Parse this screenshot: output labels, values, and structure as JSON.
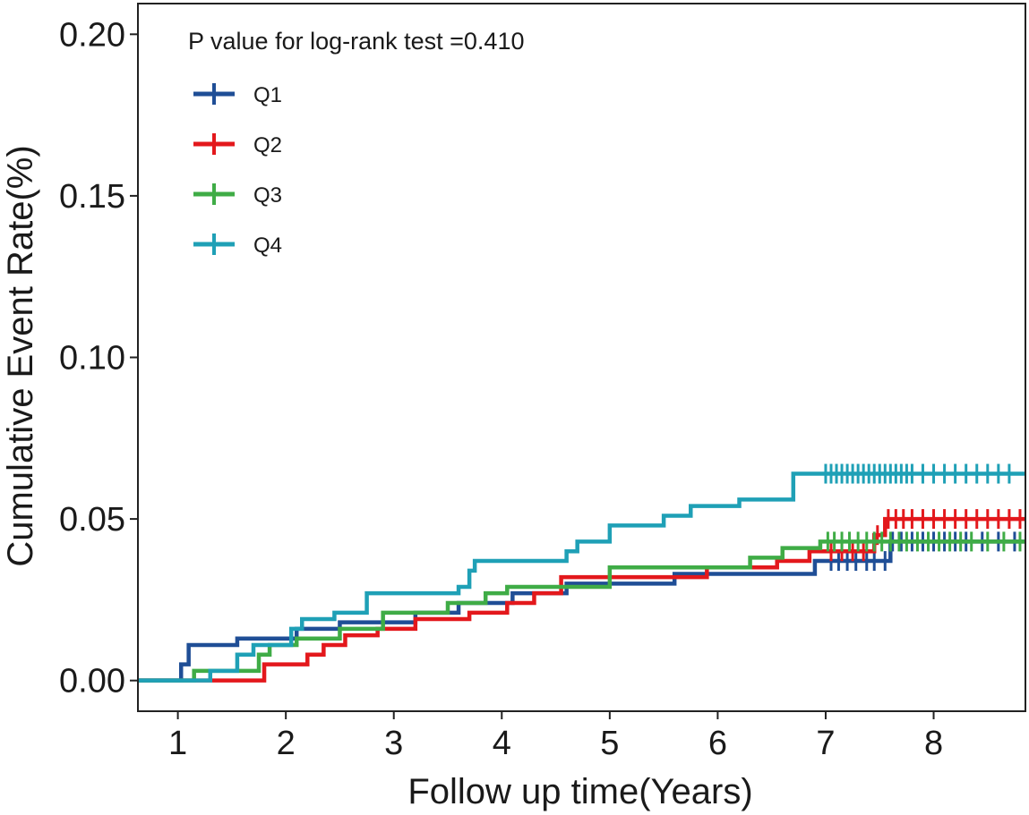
{
  "chart_data": {
    "type": "line",
    "subtype": "kaplan-meier-step",
    "title": "",
    "annotation": "P value for log-rank test =0.410",
    "xlabel": "Follow up time(Years)",
    "ylabel": "Cumulative Event Rate(%)",
    "xlim": [
      0.63,
      8.85
    ],
    "ylim": [
      -0.0095,
      0.2095
    ],
    "xticks": [
      1,
      2,
      3,
      4,
      5,
      6,
      7,
      8
    ],
    "xtick_labels": [
      "1",
      "2",
      "3",
      "4",
      "5",
      "6",
      "7",
      "8"
    ],
    "yticks": [
      0.0,
      0.05,
      0.1,
      0.15,
      0.2
    ],
    "ytick_labels": [
      "0.00",
      "0.05",
      "0.10",
      "0.15",
      "0.20"
    ],
    "legend_position": "top-left",
    "series": [
      {
        "name": "Q1",
        "color": "#1f4e96",
        "steps": [
          [
            0.63,
            0.0
          ],
          [
            1.03,
            0.005
          ],
          [
            1.1,
            0.011
          ],
          [
            1.55,
            0.013
          ],
          [
            1.82,
            0.013
          ],
          [
            2.1,
            0.016
          ],
          [
            2.5,
            0.018
          ],
          [
            3.2,
            0.021
          ],
          [
            3.6,
            0.024
          ],
          [
            4.1,
            0.027
          ],
          [
            4.6,
            0.03
          ],
          [
            5.6,
            0.033
          ],
          [
            5.8,
            0.033
          ],
          [
            6.9,
            0.037
          ],
          [
            7.3,
            0.037
          ],
          [
            7.6,
            0.043
          ],
          [
            8.85,
            0.043
          ]
        ],
        "censor_x": [
          7.05,
          7.12,
          7.2,
          7.28,
          7.38,
          7.45,
          7.55,
          7.62,
          7.7,
          7.8,
          7.9,
          8.0,
          8.1,
          8.2,
          8.3,
          8.45,
          8.6,
          8.75
        ]
      },
      {
        "name": "Q2",
        "color": "#e3181c",
        "steps": [
          [
            0.63,
            0.0
          ],
          [
            1.3,
            0.0
          ],
          [
            1.8,
            0.005
          ],
          [
            2.2,
            0.008
          ],
          [
            2.35,
            0.011
          ],
          [
            2.55,
            0.014
          ],
          [
            2.85,
            0.016
          ],
          [
            3.2,
            0.019
          ],
          [
            3.7,
            0.021
          ],
          [
            4.05,
            0.024
          ],
          [
            4.3,
            0.027
          ],
          [
            4.55,
            0.032
          ],
          [
            5.9,
            0.035
          ],
          [
            6.55,
            0.037
          ],
          [
            6.85,
            0.04
          ],
          [
            7.1,
            0.04
          ],
          [
            7.45,
            0.045
          ],
          [
            7.55,
            0.05
          ],
          [
            8.85,
            0.05
          ]
        ],
        "censor_x": [
          7.05,
          7.15,
          7.25,
          7.35,
          7.48,
          7.58,
          7.65,
          7.72,
          7.8,
          7.9,
          8.0,
          8.1,
          8.2,
          8.3,
          8.4,
          8.5,
          8.6,
          8.7,
          8.8
        ]
      },
      {
        "name": "Q3",
        "color": "#3fac46",
        "steps": [
          [
            0.63,
            0.0
          ],
          [
            1.15,
            0.003
          ],
          [
            1.75,
            0.008
          ],
          [
            1.85,
            0.011
          ],
          [
            2.1,
            0.013
          ],
          [
            2.5,
            0.016
          ],
          [
            2.9,
            0.021
          ],
          [
            3.5,
            0.024
          ],
          [
            3.85,
            0.027
          ],
          [
            4.05,
            0.029
          ],
          [
            5.0,
            0.035
          ],
          [
            6.3,
            0.038
          ],
          [
            6.6,
            0.041
          ],
          [
            6.95,
            0.043
          ],
          [
            8.85,
            0.043
          ]
        ],
        "censor_x": [
          7.02,
          7.08,
          7.15,
          7.22,
          7.3,
          7.38,
          7.45,
          7.52,
          7.6,
          7.68,
          7.75,
          7.85,
          7.95,
          8.05,
          8.15,
          8.25,
          8.35,
          8.5,
          8.65,
          8.8
        ]
      },
      {
        "name": "Q4",
        "color": "#1fa0b6",
        "steps": [
          [
            0.63,
            0.0
          ],
          [
            1.3,
            0.003
          ],
          [
            1.55,
            0.008
          ],
          [
            1.7,
            0.011
          ],
          [
            2.05,
            0.016
          ],
          [
            2.15,
            0.019
          ],
          [
            2.45,
            0.021
          ],
          [
            2.75,
            0.027
          ],
          [
            3.6,
            0.029
          ],
          [
            3.7,
            0.034
          ],
          [
            3.75,
            0.037
          ],
          [
            4.6,
            0.04
          ],
          [
            4.7,
            0.043
          ],
          [
            5.0,
            0.048
          ],
          [
            5.5,
            0.051
          ],
          [
            5.75,
            0.054
          ],
          [
            6.2,
            0.056
          ],
          [
            6.7,
            0.064
          ],
          [
            8.85,
            0.064
          ]
        ],
        "censor_x": [
          7.0,
          7.05,
          7.1,
          7.15,
          7.2,
          7.25,
          7.3,
          7.35,
          7.4,
          7.45,
          7.5,
          7.55,
          7.6,
          7.65,
          7.7,
          7.75,
          7.8,
          7.9,
          8.0,
          8.1,
          8.2,
          8.3,
          8.4,
          8.5,
          8.6,
          8.7
        ]
      }
    ]
  }
}
